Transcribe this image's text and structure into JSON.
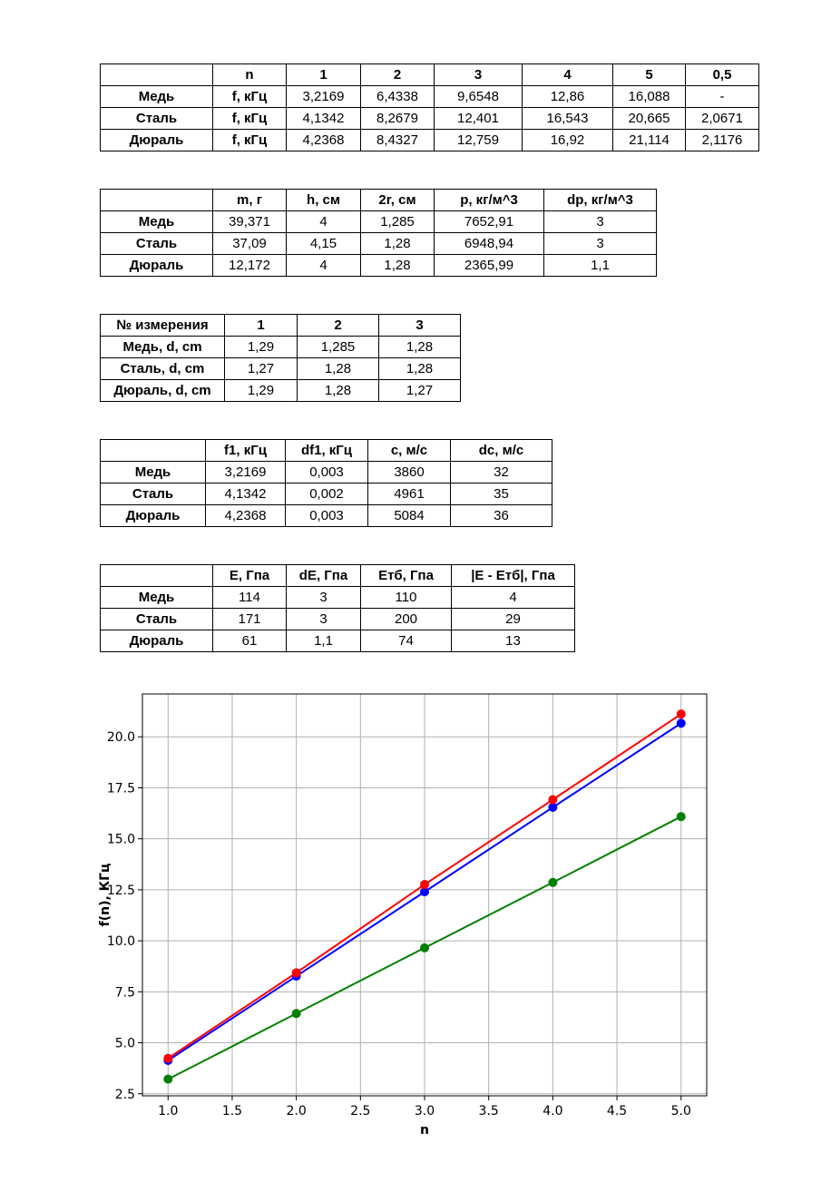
{
  "table1": {
    "header": [
      "",
      "n",
      "1",
      "2",
      "3",
      "4",
      "5",
      "0,5"
    ],
    "rows": [
      [
        "Медь",
        "f, кГц",
        "3,2169",
        "6,4338",
        "9,6548",
        "12,86",
        "16,088",
        "-"
      ],
      [
        "Сталь",
        "f, кГц",
        "4,1342",
        "8,2679",
        "12,401",
        "16,543",
        "20,665",
        "2,0671"
      ],
      [
        "Дюраль",
        "f, кГц",
        "4,2368",
        "8,4327",
        "12,759",
        "16,92",
        "21,114",
        "2,1176"
      ]
    ]
  },
  "table2": {
    "header": [
      "",
      "m, г",
      "h, см",
      "2r, см",
      "p, кг/м^3",
      "dp, кг/м^3"
    ],
    "rows": [
      [
        "Медь",
        "39,371",
        "4",
        "1,285",
        "7652,91",
        "3"
      ],
      [
        "Сталь",
        "37,09",
        "4,15",
        "1,28",
        "6948,94",
        "3"
      ],
      [
        "Дюраль",
        "12,172",
        "4",
        "1,28",
        "2365,99",
        "1,1"
      ]
    ]
  },
  "table3": {
    "header": [
      "№ измерения",
      "1",
      "2",
      "3"
    ],
    "rows": [
      [
        "Медь, d, cm",
        "1,29",
        "1,285",
        "1,28"
      ],
      [
        "Сталь, d, cm",
        "1,27",
        "1,28",
        "1,28"
      ],
      [
        "Дюраль, d, cm",
        "1,29",
        "1,28",
        "1,27"
      ]
    ]
  },
  "table4": {
    "header": [
      "",
      "f1, кГц",
      "df1, кГц",
      "c, м/с",
      "dc, м/с"
    ],
    "rows": [
      [
        "Медь",
        "3,2169",
        "0,003",
        "3860",
        "32"
      ],
      [
        "Сталь",
        "4,1342",
        "0,002",
        "4961",
        "35"
      ],
      [
        "Дюраль",
        "4,2368",
        "0,003",
        "5084",
        "36"
      ]
    ]
  },
  "table5": {
    "header": [
      "",
      "E, Гпа",
      "dE, Гпа",
      "Етб, Гпа",
      "|E - Етб|, Гпа"
    ],
    "rows": [
      [
        "Медь",
        "114",
        "3",
        "110",
        "4"
      ],
      [
        "Сталь",
        "171",
        "3",
        "200",
        "29"
      ],
      [
        "Дюраль",
        "61",
        "1,1",
        "74",
        "13"
      ]
    ]
  },
  "chart_data": {
    "type": "line",
    "title": "",
    "xlabel": "n",
    "ylabel": "f(n), КГц",
    "x": [
      1,
      2,
      3,
      4,
      5
    ],
    "xlim": [
      0.8,
      5.2
    ],
    "ylim": [
      2.4,
      22.1
    ],
    "x_ticks": [
      "1.0",
      "1.5",
      "2.0",
      "2.5",
      "3.0",
      "3.5",
      "4.0",
      "4.5",
      "5.0"
    ],
    "y_ticks": [
      "2.5",
      "5.0",
      "7.5",
      "10.0",
      "12.5",
      "15.0",
      "17.5",
      "20.0"
    ],
    "grid": true,
    "series": [
      {
        "color": "#008000",
        "values": [
          3.2169,
          6.4338,
          9.6548,
          12.86,
          16.088
        ]
      },
      {
        "color": "#0000ff",
        "values": [
          4.1342,
          8.2679,
          12.401,
          16.543,
          20.665
        ]
      },
      {
        "color": "#ff0000",
        "values": [
          4.2368,
          8.4327,
          12.759,
          16.92,
          21.114
        ]
      }
    ]
  }
}
